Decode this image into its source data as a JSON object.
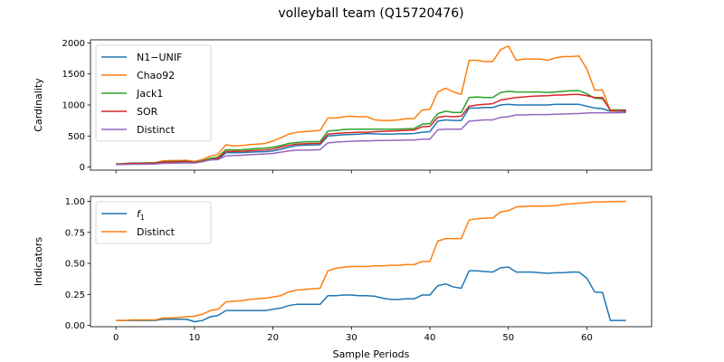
{
  "figure": {
    "title": "volleyball team (Q15720476)"
  },
  "chart_data": [
    {
      "type": "line",
      "ylabel": "Cardinality",
      "xlabel": "",
      "xlim": [
        -3.25,
        68.25
      ],
      "ylim": [
        -50,
        2050
      ],
      "xticks": [
        0,
        10,
        20,
        30,
        40,
        50,
        60
      ],
      "yticks": [
        0,
        500,
        1000,
        1500,
        2000
      ],
      "legend": "top-left",
      "grid": false,
      "series": [
        {
          "name": "N1−UNIF",
          "color": "#1f77b4",
          "values": [
            40,
            45,
            50,
            52,
            52,
            55,
            75,
            80,
            82,
            85,
            70,
            90,
            120,
            125,
            230,
            230,
            232,
            240,
            245,
            248,
            260,
            285,
            320,
            345,
            352,
            355,
            360,
            500,
            510,
            520,
            525,
            530,
            540,
            535,
            530,
            530,
            535,
            535,
            540,
            560,
            570,
            740,
            760,
            750,
            750,
            950,
            950,
            960,
            960,
            1000,
            1010,
            1000,
            1000,
            1000,
            1000,
            1000,
            1010,
            1010,
            1010,
            1010,
            980,
            950,
            940,
            900,
            900,
            900
          ]
        },
        {
          "name": "Chao92",
          "color": "#ff7f0e",
          "values": [
            50,
            55,
            60,
            60,
            62,
            70,
            100,
            105,
            105,
            108,
            90,
            120,
            175,
            205,
            360,
            340,
            345,
            360,
            370,
            380,
            420,
            470,
            530,
            560,
            570,
            580,
            590,
            790,
            790,
            810,
            820,
            810,
            810,
            760,
            750,
            750,
            760,
            780,
            780,
            920,
            930,
            1210,
            1270,
            1210,
            1170,
            1720,
            1720,
            1700,
            1700,
            1890,
            1950,
            1720,
            1740,
            1740,
            1740,
            1720,
            1760,
            1780,
            1780,
            1790,
            1580,
            1240,
            1240,
            900,
            910,
            910
          ]
        },
        {
          "name": "Jack1",
          "color": "#2ca02c",
          "values": [
            50,
            55,
            65,
            65,
            68,
            68,
            85,
            90,
            92,
            95,
            80,
            100,
            140,
            160,
            280,
            275,
            280,
            290,
            300,
            305,
            320,
            345,
            380,
            395,
            405,
            410,
            410,
            580,
            590,
            605,
            610,
            610,
            610,
            610,
            610,
            610,
            612,
            615,
            620,
            690,
            700,
            860,
            900,
            880,
            880,
            1120,
            1130,
            1120,
            1120,
            1200,
            1220,
            1210,
            1210,
            1210,
            1210,
            1200,
            1210,
            1220,
            1230,
            1230,
            1180,
            1110,
            1100,
            920,
            920,
            920
          ]
        },
        {
          "name": "SOR",
          "color": "#d62728",
          "values": [
            45,
            50,
            60,
            60,
            62,
            62,
            80,
            85,
            88,
            90,
            75,
            95,
            120,
            140,
            250,
            250,
            255,
            262,
            270,
            275,
            290,
            320,
            350,
            370,
            375,
            380,
            380,
            530,
            540,
            550,
            555,
            560,
            560,
            570,
            575,
            580,
            585,
            590,
            595,
            650,
            655,
            800,
            820,
            810,
            820,
            980,
            1000,
            1010,
            1020,
            1080,
            1100,
            1120,
            1130,
            1140,
            1145,
            1150,
            1160,
            1160,
            1170,
            1170,
            1150,
            1120,
            1120,
            910,
            910,
            905
          ]
        },
        {
          "name": "Distinct",
          "color": "#9467bd",
          "values": [
            40,
            42,
            45,
            45,
            47,
            48,
            60,
            62,
            65,
            68,
            65,
            85,
            115,
            120,
            180,
            185,
            190,
            200,
            205,
            210,
            220,
            240,
            260,
            270,
            272,
            275,
            280,
            390,
            400,
            410,
            415,
            420,
            420,
            425,
            428,
            430,
            432,
            435,
            435,
            450,
            450,
            600,
            610,
            610,
            610,
            740,
            750,
            760,
            760,
            800,
            810,
            840,
            840,
            845,
            845,
            845,
            850,
            855,
            860,
            862,
            870,
            875,
            875,
            875,
            875,
            880
          ]
        }
      ]
    },
    {
      "type": "line",
      "ylabel": "Indicators",
      "xlabel": "Sample Periods",
      "xlim": [
        -3.25,
        68.25
      ],
      "ylim": [
        -0.01,
        1.04
      ],
      "xticks": [
        0,
        10,
        20,
        30,
        40,
        50,
        60
      ],
      "yticks": [
        "0.00",
        "0.25",
        "0.50",
        "0.75",
        "1.00"
      ],
      "legend": "top-left",
      "grid": false,
      "series": [
        {
          "name": "f",
          "name_sub": "1",
          "color": "#1f77b4",
          "values": [
            0.04,
            0.04,
            0.04,
            0.04,
            0.04,
            0.04,
            0.05,
            0.05,
            0.05,
            0.05,
            0.03,
            0.04,
            0.07,
            0.08,
            0.12,
            0.12,
            0.12,
            0.12,
            0.12,
            0.12,
            0.13,
            0.14,
            0.16,
            0.17,
            0.17,
            0.17,
            0.17,
            0.24,
            0.24,
            0.245,
            0.245,
            0.24,
            0.24,
            0.235,
            0.22,
            0.21,
            0.21,
            0.215,
            0.215,
            0.245,
            0.245,
            0.32,
            0.335,
            0.31,
            0.3,
            0.44,
            0.44,
            0.435,
            0.43,
            0.465,
            0.47,
            0.43,
            0.43,
            0.43,
            0.425,
            0.42,
            0.425,
            0.425,
            0.43,
            0.43,
            0.38,
            0.27,
            0.265,
            0.04,
            0.04,
            0.04
          ]
        },
        {
          "name": "Distinct",
          "color": "#ff7f0e",
          "values": [
            0.04,
            0.04,
            0.045,
            0.045,
            0.045,
            0.045,
            0.06,
            0.06,
            0.065,
            0.07,
            0.075,
            0.09,
            0.12,
            0.13,
            0.19,
            0.195,
            0.2,
            0.21,
            0.215,
            0.22,
            0.23,
            0.24,
            0.27,
            0.285,
            0.29,
            0.295,
            0.3,
            0.44,
            0.46,
            0.47,
            0.475,
            0.475,
            0.475,
            0.48,
            0.48,
            0.485,
            0.485,
            0.49,
            0.49,
            0.515,
            0.515,
            0.68,
            0.7,
            0.7,
            0.7,
            0.85,
            0.86,
            0.865,
            0.865,
            0.915,
            0.925,
            0.955,
            0.96,
            0.962,
            0.962,
            0.962,
            0.965,
            0.975,
            0.98,
            0.985,
            0.99,
            0.995,
            0.995,
            0.998,
            0.999,
            1.0
          ]
        }
      ]
    }
  ]
}
